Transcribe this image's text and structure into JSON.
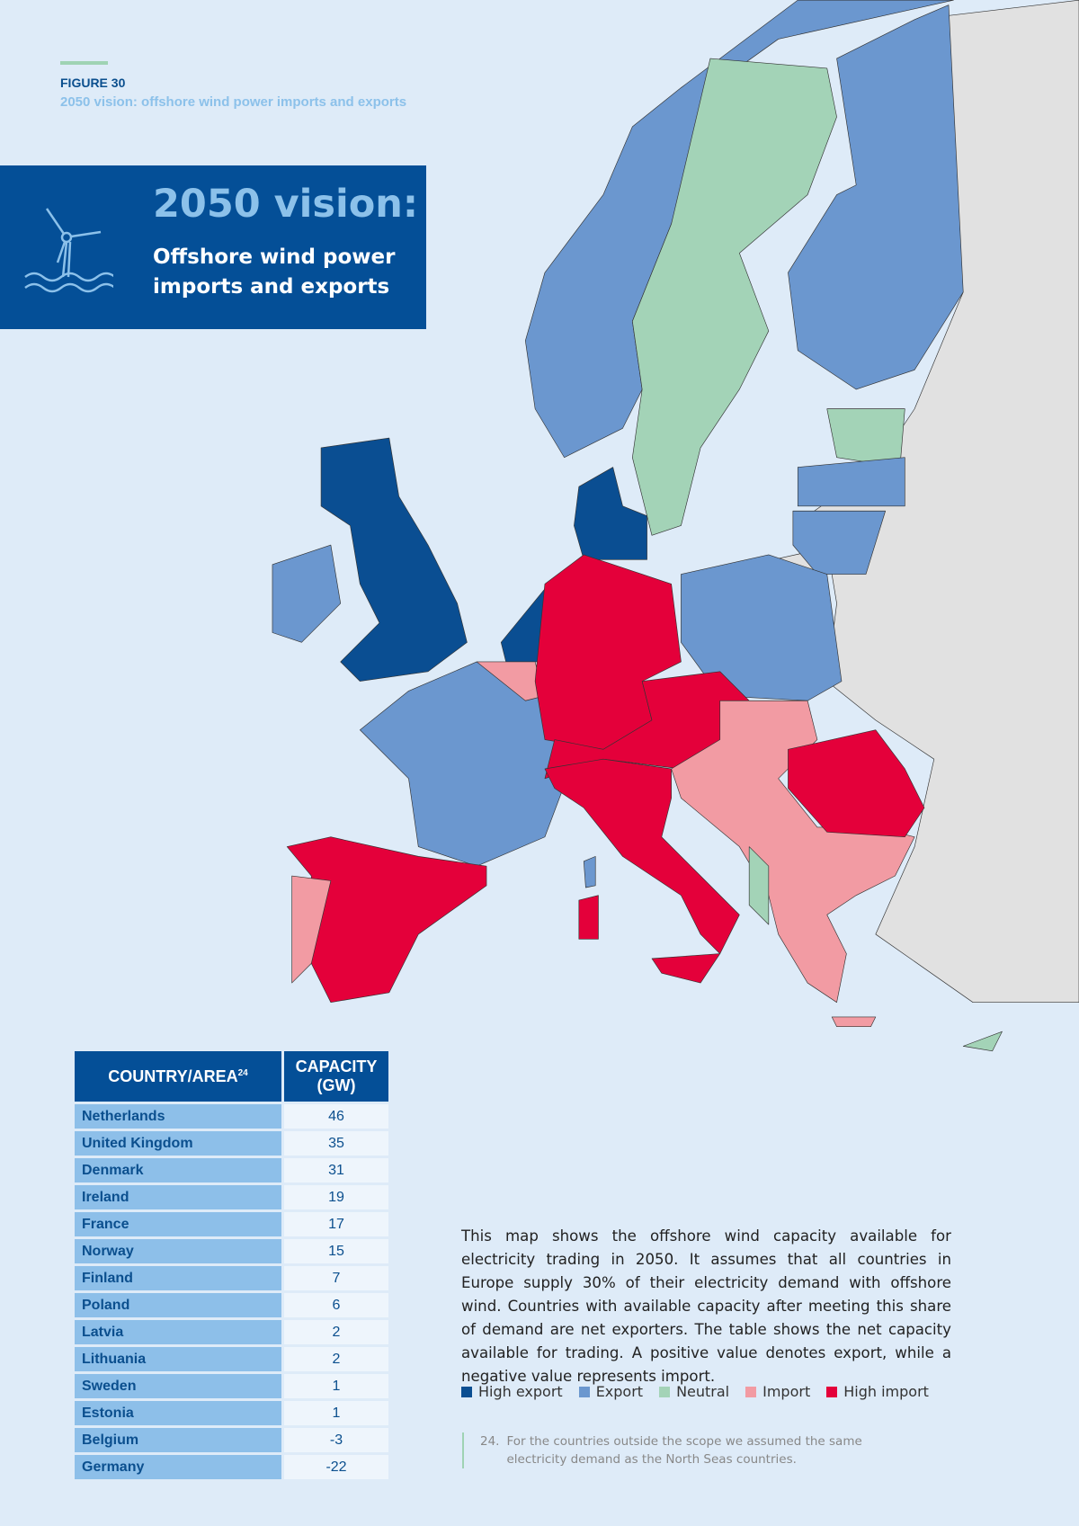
{
  "figure": {
    "label": "FIGURE 30",
    "caption": "2050 vision: offshore wind power imports and exports"
  },
  "banner": {
    "title": "2050 vision:",
    "subtitle": "Offshore wind power imports and exports"
  },
  "table": {
    "header": {
      "country": "COUNTRY/AREA",
      "note": "24",
      "capacity": "CAPACITY (GW)"
    },
    "rows": [
      [
        "Netherlands",
        46
      ],
      [
        "United Kingdom",
        35
      ],
      [
        "Denmark",
        31
      ],
      [
        "Ireland",
        19
      ],
      [
        "France",
        17
      ],
      [
        "Norway",
        15
      ],
      [
        "Finland",
        7
      ],
      [
        "Poland",
        6
      ],
      [
        "Latvia",
        2
      ],
      [
        "Lithuania",
        2
      ],
      [
        "Sweden",
        1
      ],
      [
        "Estonia",
        1
      ],
      [
        "Belgium",
        -3
      ],
      [
        "Germany",
        -22
      ]
    ]
  },
  "description": "This map shows the offshore wind capacity available for electricity trading in 2050. It assumes that all countries in Europe supply 30% of their electricity demand with offshore wind. Countries with available capacity after meeting this share of demand are net exporters. The table shows the net capacity available for trading. A positive value denotes export, while a negative value represents import.",
  "legend": [
    {
      "name": "High export",
      "color": "#0a4e92"
    },
    {
      "name": "Export",
      "color": "#6b97cf"
    },
    {
      "name": "Neutral",
      "color": "#a3d3b7"
    },
    {
      "name": "Import",
      "color": "#f29ba3"
    },
    {
      "name": "High import",
      "color": "#e4003a"
    }
  ],
  "footnote": {
    "number": "24.",
    "text": "For the countries outside the scope we assumed the same electricity demand as the North Seas countries."
  }
}
